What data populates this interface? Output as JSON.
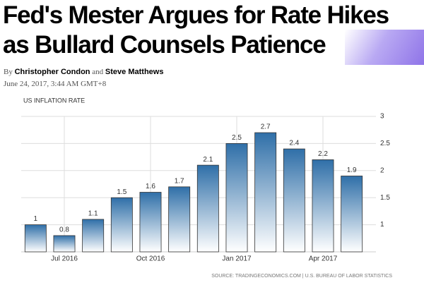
{
  "article": {
    "headline": [
      "Fed's Mester Argues for Rate Hikes",
      "as Bullard Counsels Patience"
    ],
    "byline": [
      "By",
      "Christopher Condon",
      "and",
      "Steve Matthews"
    ],
    "date": "June 24, 2017, 3:44 AM GMT+8"
  },
  "chart_data": {
    "type": "bar",
    "title": "US INFLATION RATE",
    "categories": [
      null,
      "Jul 2016",
      null,
      null,
      "Oct 2016",
      null,
      null,
      "Jan 2017",
      null,
      null,
      "Apr 2017",
      null
    ],
    "values": [
      1,
      0.8,
      1.1,
      1.5,
      1.6,
      1.7,
      2.1,
      2.5,
      2.7,
      2.4,
      2.2,
      1.9
    ],
    "color": "#2f6fa8",
    "ylim": [
      0.5,
      3
    ],
    "yticks": [
      1,
      1.5,
      2,
      2.5,
      3
    ],
    "grid": true,
    "source": "SOURCE: TRADINGECONOMICS.COM | U.S. BUREAU OF LABOR STATISTICS"
  }
}
